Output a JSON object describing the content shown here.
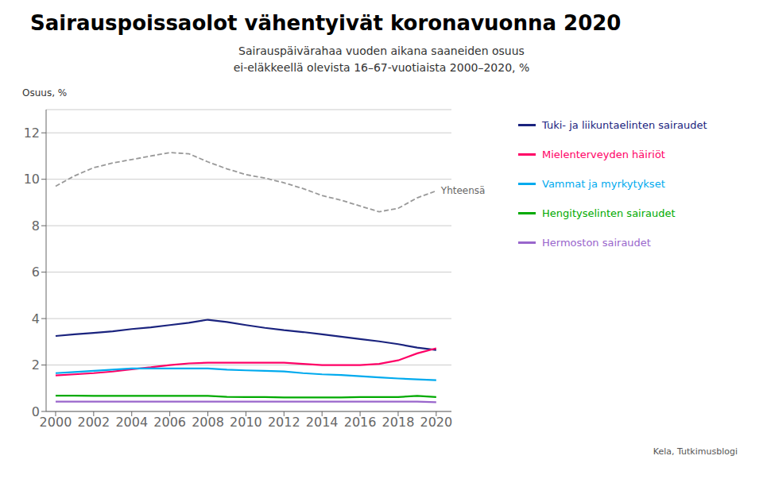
{
  "chart_data": {
    "type": "line",
    "title": "Sairauspoissaolot vähentyivät koronavuonna 2020",
    "subtitle": "Sairauspäivärahaa vuoden aikana saaneiden osuus\nei-eläkkeellä olevista 16–67-vuotiaista 2000–2020, %",
    "y_label": "Osuus, %",
    "source": "Kela, Tutkimusblogi",
    "x": [
      2000,
      2001,
      2002,
      2003,
      2004,
      2005,
      2006,
      2007,
      2008,
      2009,
      2010,
      2011,
      2012,
      2013,
      2014,
      2015,
      2016,
      2017,
      2018,
      2019,
      2020
    ],
    "series": [
      {
        "name": "Yhteensä",
        "color": "#999999",
        "line_style": "dashed",
        "values": [
          9.7,
          10.15,
          10.5,
          10.7,
          10.85,
          11.0,
          11.15,
          11.1,
          10.75,
          10.45,
          10.2,
          10.05,
          9.85,
          9.6,
          9.3,
          9.1,
          8.85,
          8.6,
          8.75,
          9.2,
          9.5
        ]
      },
      {
        "name": "Tuki- ja liikuntaelinten sairaudet",
        "color": "#1a237e",
        "line_style": "solid",
        "values": [
          3.25,
          3.32,
          3.38,
          3.45,
          3.55,
          3.62,
          3.72,
          3.82,
          3.95,
          3.85,
          3.72,
          3.6,
          3.5,
          3.42,
          3.32,
          3.22,
          3.12,
          3.02,
          2.9,
          2.75,
          2.65
        ]
      },
      {
        "name": "Mielenterveyden häiriöt",
        "color": "#ff0066",
        "line_style": "solid",
        "values": [
          1.55,
          1.6,
          1.65,
          1.72,
          1.82,
          1.9,
          2.0,
          2.07,
          2.1,
          2.1,
          2.1,
          2.1,
          2.1,
          2.05,
          2.0,
          2.0,
          2.0,
          2.05,
          2.2,
          2.5,
          2.72
        ]
      },
      {
        "name": "Vammat ja myrkytykset",
        "color": "#00aaee",
        "line_style": "solid",
        "values": [
          1.65,
          1.7,
          1.75,
          1.8,
          1.85,
          1.85,
          1.85,
          1.85,
          1.85,
          1.8,
          1.77,
          1.75,
          1.72,
          1.65,
          1.6,
          1.57,
          1.52,
          1.47,
          1.42,
          1.38,
          1.35
        ]
      },
      {
        "name": "Hengityselinten sairaudet",
        "color": "#00aa00",
        "line_style": "solid",
        "values": [
          0.68,
          0.68,
          0.67,
          0.67,
          0.67,
          0.67,
          0.67,
          0.67,
          0.67,
          0.63,
          0.62,
          0.62,
          0.6,
          0.6,
          0.6,
          0.6,
          0.62,
          0.62,
          0.62,
          0.67,
          0.62
        ]
      },
      {
        "name": "Hermoston sairaudet",
        "color": "#9966cc",
        "line_style": "solid",
        "values": [
          0.42,
          0.42,
          0.42,
          0.42,
          0.42,
          0.42,
          0.42,
          0.42,
          0.42,
          0.42,
          0.42,
          0.42,
          0.42,
          0.42,
          0.42,
          0.42,
          0.42,
          0.42,
          0.42,
          0.42,
          0.4
        ]
      }
    ],
    "xlim": [
      1999.5,
      2020.8
    ],
    "xticks": [
      2000,
      2002,
      2004,
      2006,
      2008,
      2010,
      2012,
      2014,
      2016,
      2018,
      2020
    ],
    "ylim": [
      0,
      13
    ],
    "yticks": [
      0,
      2,
      4,
      6,
      8,
      10,
      12
    ],
    "grid": true
  }
}
